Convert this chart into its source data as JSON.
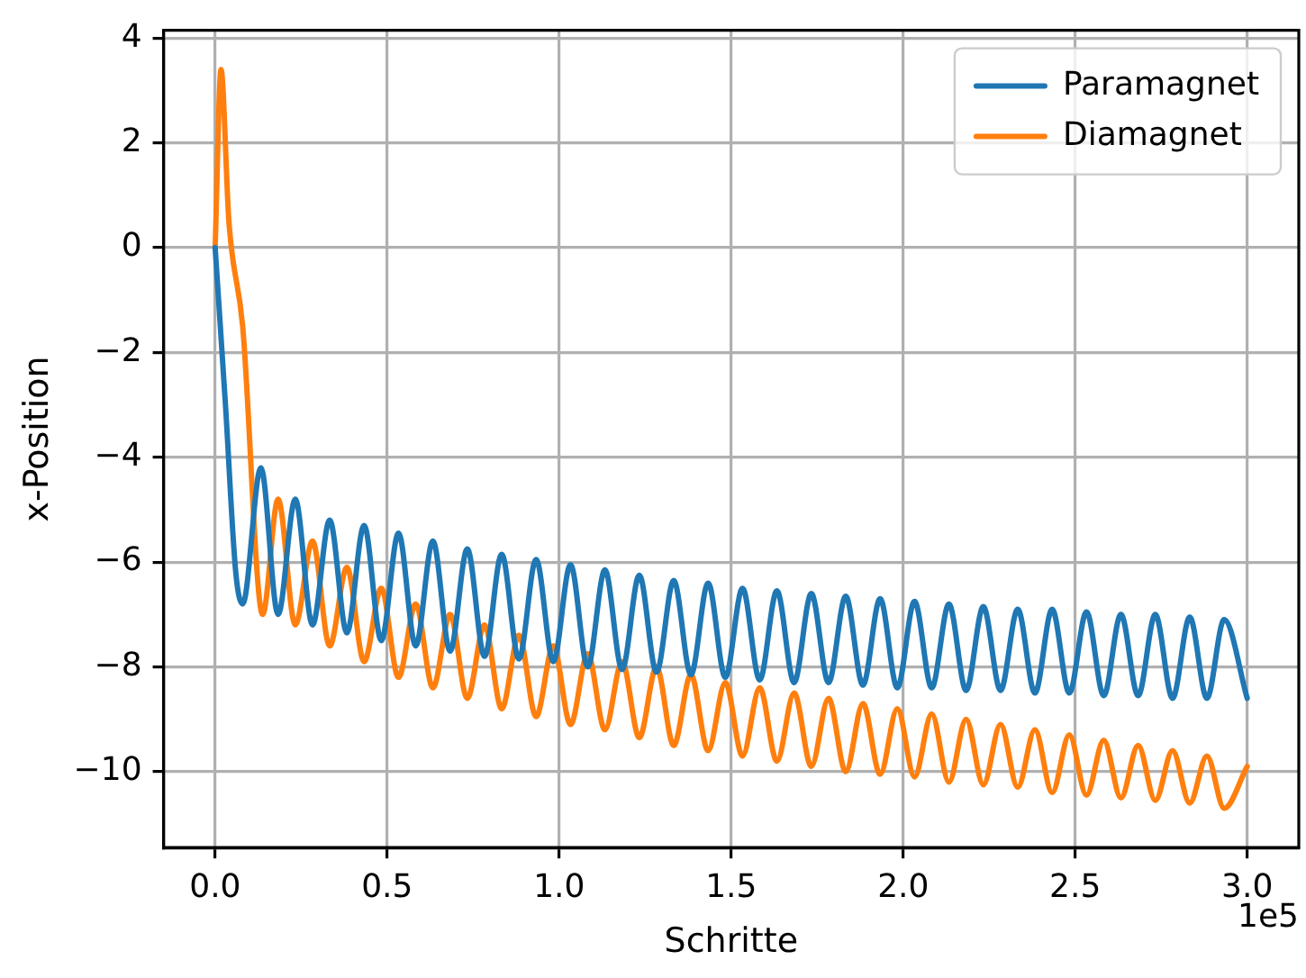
{
  "chart_data": {
    "type": "line",
    "xlabel": "Schritte",
    "ylabel": "x-Position",
    "xlim": [
      -0.15,
      3.15
    ],
    "xticks": [
      {
        "value": 0,
        "label": "0.0"
      },
      0.5,
      {
        "value": 1,
        "label": "1.0"
      },
      1.5,
      {
        "value": 2,
        "label": "2.0"
      },
      2.5,
      {
        "value": 3,
        "label": "3.0"
      }
    ],
    "ylim": [
      -11.45,
      4.15
    ],
    "yticks": [
      {
        "value": -10,
        "label": "−10"
      },
      {
        "value": -8,
        "label": "−8"
      },
      {
        "value": -6,
        "label": "−6"
      },
      {
        "value": -4,
        "label": "−4"
      },
      {
        "value": -2,
        "label": "−2"
      },
      0,
      2,
      4
    ],
    "grid": true,
    "legend": "top right",
    "marker": "none",
    "line_style": "solid",
    "annotations": [
      "1e5"
    ],
    "series": [
      {
        "name": "Paramagnet",
        "color": "#1f77b4",
        "x": [
          0,
          0.03,
          0.06,
          0.08,
          0.133,
          0.183,
          0.233,
          0.283,
          0.333,
          0.383,
          0.433,
          0.483,
          0.533,
          0.583,
          0.633,
          0.683,
          0.733,
          0.783,
          0.833,
          0.883,
          0.933,
          0.983,
          1.033,
          1.083,
          1.133,
          1.183,
          1.233,
          1.283,
          1.333,
          1.383,
          1.433,
          1.483,
          1.533,
          1.583,
          1.633,
          1.683,
          1.733,
          1.783,
          1.833,
          1.883,
          1.933,
          1.983,
          2.033,
          2.083,
          2.133,
          2.183,
          2.233,
          2.283,
          2.333,
          2.383,
          2.433,
          2.483,
          2.533,
          2.583,
          2.633,
          2.683,
          2.733,
          2.783,
          2.833,
          2.883,
          2.933,
          3.0
        ],
        "values": [
          0,
          -3,
          -6.2,
          -6.8,
          -4.2,
          -7.0,
          -4.8,
          -7.2,
          -5.2,
          -7.35,
          -5.3,
          -7.5,
          -5.45,
          -7.6,
          -5.6,
          -7.7,
          -5.75,
          -7.8,
          -5.85,
          -7.85,
          -5.95,
          -7.9,
          -6.05,
          -8.0,
          -6.15,
          -8.05,
          -6.25,
          -8.1,
          -6.35,
          -8.15,
          -6.4,
          -8.2,
          -6.5,
          -8.25,
          -6.55,
          -8.3,
          -6.6,
          -8.3,
          -6.65,
          -8.35,
          -6.7,
          -8.4,
          -6.75,
          -8.4,
          -6.8,
          -8.45,
          -6.85,
          -8.45,
          -6.9,
          -8.5,
          -6.9,
          -8.5,
          -6.95,
          -8.55,
          -7.0,
          -8.55,
          -7.0,
          -8.6,
          -7.05,
          -8.6,
          -7.1,
          -8.6
        ]
      },
      {
        "name": "Diamagnet",
        "color": "#ff7f0e",
        "x": [
          0,
          0.017,
          0.04,
          0.08,
          0.138,
          0.183,
          0.233,
          0.283,
          0.333,
          0.383,
          0.433,
          0.483,
          0.533,
          0.583,
          0.633,
          0.683,
          0.733,
          0.783,
          0.833,
          0.883,
          0.933,
          0.983,
          1.033,
          1.083,
          1.133,
          1.183,
          1.233,
          1.283,
          1.333,
          1.383,
          1.433,
          1.483,
          1.533,
          1.583,
          1.633,
          1.683,
          1.733,
          1.783,
          1.833,
          1.883,
          1.933,
          1.983,
          2.033,
          2.083,
          2.133,
          2.183,
          2.233,
          2.283,
          2.333,
          2.383,
          2.433,
          2.483,
          2.533,
          2.583,
          2.633,
          2.683,
          2.733,
          2.783,
          2.833,
          2.883,
          2.933,
          3.0
        ],
        "values": [
          0,
          3.4,
          0.5,
          -1.5,
          -7.0,
          -4.8,
          -7.2,
          -5.6,
          -7.6,
          -6.1,
          -7.9,
          -6.5,
          -8.2,
          -6.8,
          -8.4,
          -7.0,
          -8.6,
          -7.2,
          -8.8,
          -7.4,
          -8.95,
          -7.6,
          -9.1,
          -7.75,
          -9.2,
          -7.9,
          -9.35,
          -8.0,
          -9.5,
          -8.15,
          -9.6,
          -8.3,
          -9.7,
          -8.4,
          -9.8,
          -8.5,
          -9.9,
          -8.6,
          -10.0,
          -8.7,
          -10.05,
          -8.8,
          -10.1,
          -8.9,
          -10.2,
          -9.0,
          -10.25,
          -9.1,
          -10.3,
          -9.2,
          -10.4,
          -9.3,
          -10.45,
          -9.4,
          -10.5,
          -9.5,
          -10.55,
          -9.6,
          -10.6,
          -9.7,
          -10.7,
          -9.9
        ]
      }
    ]
  }
}
